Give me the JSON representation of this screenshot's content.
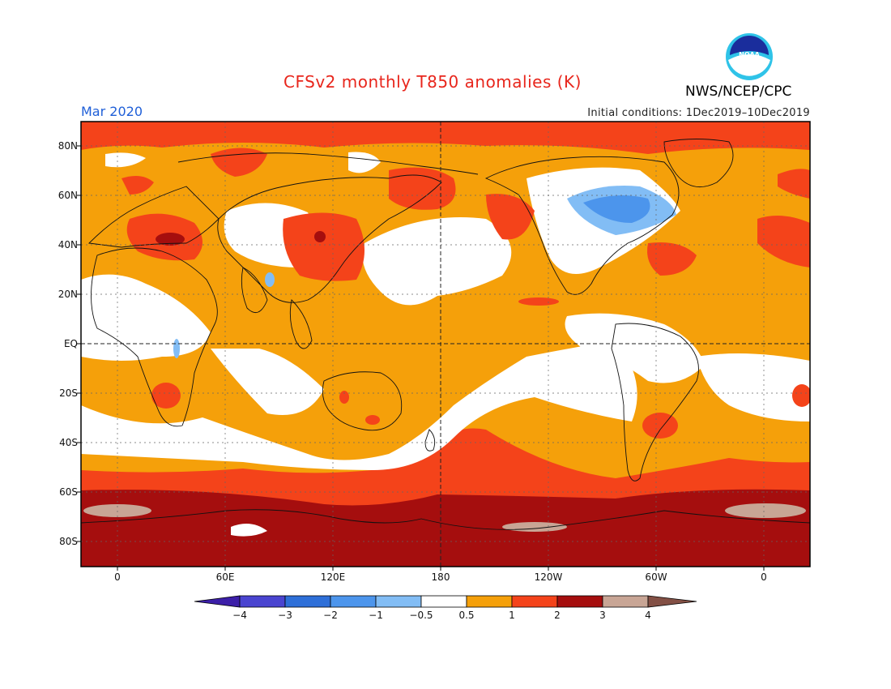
{
  "header": {
    "title": "CFSv2 monthly T850 anomalies (K)",
    "month": "Mar 2020",
    "initial_conditions": "Initial conditions: 1Dec2019–10Dec2019",
    "organization": "NWS/NCEP/CPC",
    "logo_text": "NOAA"
  },
  "map": {
    "y_labels": [
      "80N",
      "60N",
      "40N",
      "20N",
      "EQ",
      "20S",
      "40S",
      "60S",
      "80S"
    ],
    "x_labels": [
      "0",
      "60E",
      "120E",
      "180",
      "120W",
      "60W",
      "0"
    ]
  },
  "colorbar": {
    "labels": [
      "−4",
      "−3",
      "−2",
      "−1",
      "−0.5",
      "0.5",
      "1",
      "2",
      "3",
      "4"
    ],
    "colors": [
      "#3c1fa8",
      "#4a44d0",
      "#2e6fd8",
      "#4c95ec",
      "#82bdf5",
      "#ffffff",
      "#f5a00a",
      "#f4431a",
      "#a50e0e",
      "#c8a595",
      "#835045"
    ]
  }
}
